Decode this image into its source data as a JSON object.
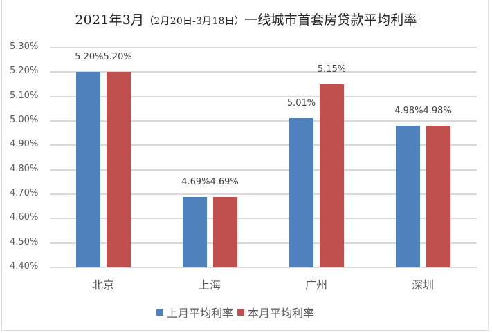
{
  "chart_data": {
    "type": "bar",
    "title_main": "2021年3月",
    "title_range": "（2月20日-3月18日）",
    "title_tail": "一线城市首套房贷款平均利率",
    "title": "2021年3月（2月20日-3月18日）一线城市首套房贷款平均利率",
    "xlabel": "",
    "ylabel": "",
    "categories": [
      "北京",
      "上海",
      "广州",
      "深圳"
    ],
    "series": [
      {
        "name": "上月平均利率",
        "color": "#4f81bd",
        "values": [
          5.2,
          4.69,
          5.01,
          4.98
        ],
        "labels": [
          "5.20%",
          "4.69%",
          "5.01%",
          "4.98%"
        ]
      },
      {
        "name": "本月平均利率",
        "color": "#c0504d",
        "values": [
          5.2,
          4.69,
          5.15,
          4.98
        ],
        "labels": [
          "5.20%",
          "4.69%",
          "5.15%",
          "4.98%"
        ]
      }
    ],
    "ylim": [
      4.4,
      5.3
    ],
    "yticks": [
      "5.30%",
      "5.20%",
      "5.10%",
      "5.00%",
      "4.90%",
      "4.80%",
      "4.70%",
      "4.60%",
      "4.50%",
      "4.40%"
    ],
    "grid": true,
    "legend_position": "bottom"
  }
}
